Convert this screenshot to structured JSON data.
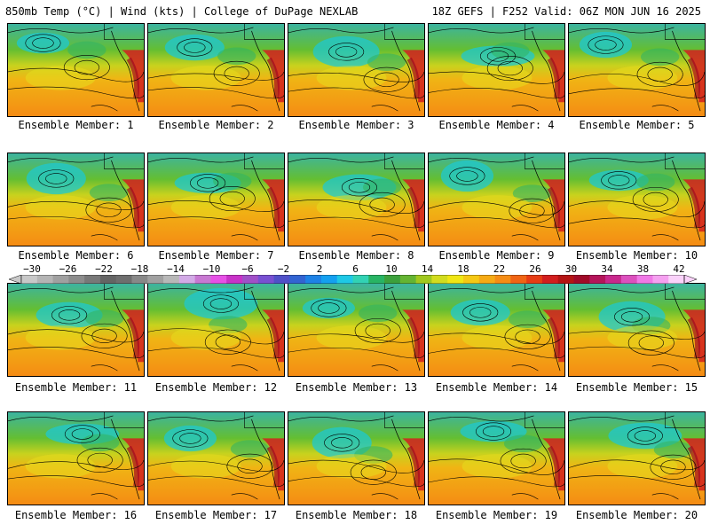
{
  "header": {
    "left": "850mb Temp (°C) | Wind (kts) | College of DuPage NEXLAB",
    "right": "18Z GEFS | F252 Valid: 06Z MON JUN 16 2025"
  },
  "colorbar": {
    "ticks": [
      "-30",
      "-26",
      "-22",
      "-18",
      "-14",
      "-10",
      "-6",
      "-2",
      "2",
      "6",
      "10",
      "14",
      "18",
      "22",
      "26",
      "30",
      "34",
      "38",
      "42"
    ],
    "colors": [
      "#c8c8c8",
      "#b4b4b4",
      "#a0a0a0",
      "#8c8c8c",
      "#787878",
      "#646464",
      "#6e6e6e",
      "#888888",
      "#a0a0a0",
      "#b8b8b8",
      "#d2aae6",
      "#c878d2",
      "#e650e6",
      "#c832c8",
      "#a050c8",
      "#7850d2",
      "#5050c8",
      "#3264d2",
      "#1e82e6",
      "#14a0f0",
      "#1ec8e6",
      "#32d2b4",
      "#28b464",
      "#3ca03c",
      "#64b432",
      "#a0c81e",
      "#d2dc1e",
      "#f0e614",
      "#f5c814",
      "#f5aa14",
      "#f58c14",
      "#f06414",
      "#e63c14",
      "#d21e1e",
      "#b41414",
      "#a00a28",
      "#b4145a",
      "#c8288c",
      "#dc50be",
      "#f078e6",
      "#f5a0f0",
      "#fad2fa"
    ]
  },
  "panels": [
    {
      "label": "Ensemble Member: 1"
    },
    {
      "label": "Ensemble Member: 2"
    },
    {
      "label": "Ensemble Member: 3"
    },
    {
      "label": "Ensemble Member: 4"
    },
    {
      "label": "Ensemble Member: 5"
    },
    {
      "label": "Ensemble Member: 6"
    },
    {
      "label": "Ensemble Member: 7"
    },
    {
      "label": "Ensemble Member: 8"
    },
    {
      "label": "Ensemble Member: 9"
    },
    {
      "label": "Ensemble Member: 10"
    },
    {
      "label": "Ensemble Member: 11"
    },
    {
      "label": "Ensemble Member: 12"
    },
    {
      "label": "Ensemble Member: 13"
    },
    {
      "label": "Ensemble Member: 14"
    },
    {
      "label": "Ensemble Member: 15"
    },
    {
      "label": "Ensemble Member: 16"
    },
    {
      "label": "Ensemble Member: 17"
    },
    {
      "label": "Ensemble Member: 18"
    },
    {
      "label": "Ensemble Member: 19"
    },
    {
      "label": "Ensemble Member: 20"
    }
  ]
}
